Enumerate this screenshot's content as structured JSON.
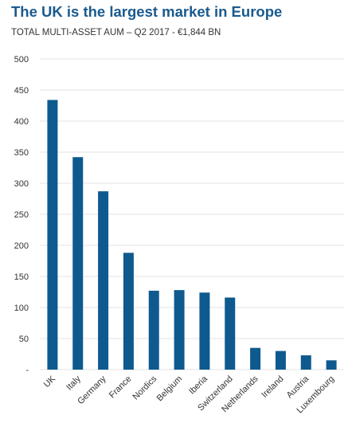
{
  "title": "The UK is the largest market in Europe",
  "subtitle": "TOTAL MULTI-ASSET AUM – Q2 2017 - €1,844 BN",
  "colors": {
    "bar": "#0e5a8f",
    "title": "#1a5a8e",
    "grid": "#e3e3e3"
  },
  "chart_data": {
    "type": "bar",
    "title": "The UK is the largest market in Europe",
    "subtitle": "TOTAL MULTI-ASSET AUM – Q2 2017 - €1,844 BN",
    "categories": [
      "UK",
      "Italy",
      "Germany",
      "France",
      "Nordics",
      "Belgium",
      "Iberia",
      "Switzerland",
      "Netherlands",
      "Ireland",
      "Austria",
      "Luxembourg"
    ],
    "values": [
      434,
      342,
      287,
      188,
      127,
      128,
      124,
      116,
      35,
      30,
      23,
      15
    ],
    "yticks": [
      "-",
      "50",
      "100",
      "150",
      "200",
      "250",
      "300",
      "350",
      "400",
      "450",
      "500"
    ],
    "ylim": [
      0,
      500
    ],
    "grid": true,
    "xlabel": "",
    "ylabel": ""
  }
}
